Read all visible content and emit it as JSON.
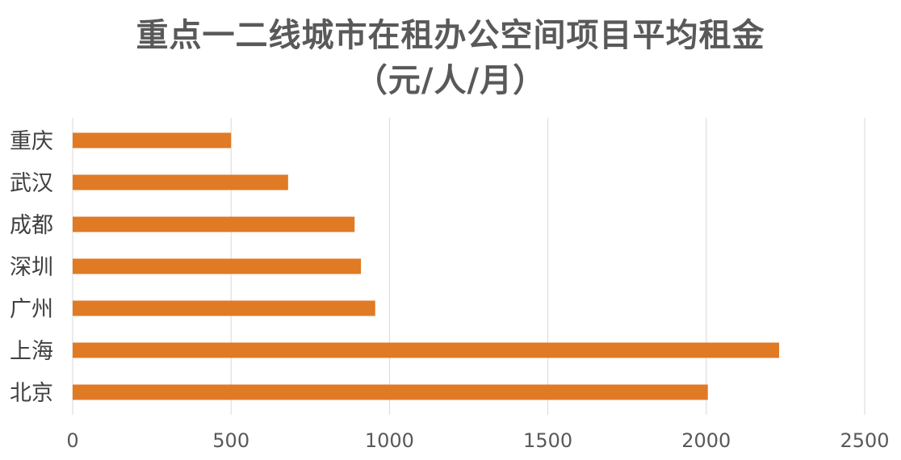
{
  "chart_data": {
    "type": "bar",
    "orientation": "horizontal",
    "title_lines": [
      "重点一二线城市在租办公空间项目平均租金",
      "（元/人/月）"
    ],
    "categories": [
      "重庆",
      "武汉",
      "成都",
      "深圳",
      "广州",
      "上海",
      "北京"
    ],
    "values": [
      500,
      680,
      890,
      910,
      955,
      2230,
      2005
    ],
    "xlim": [
      0,
      2500
    ],
    "xticks": [
      0,
      500,
      1000,
      1500,
      2000,
      2500
    ],
    "grid": true,
    "legend": "none",
    "bar_color": "#E07A24",
    "grid_color": "#D9D9D9"
  }
}
